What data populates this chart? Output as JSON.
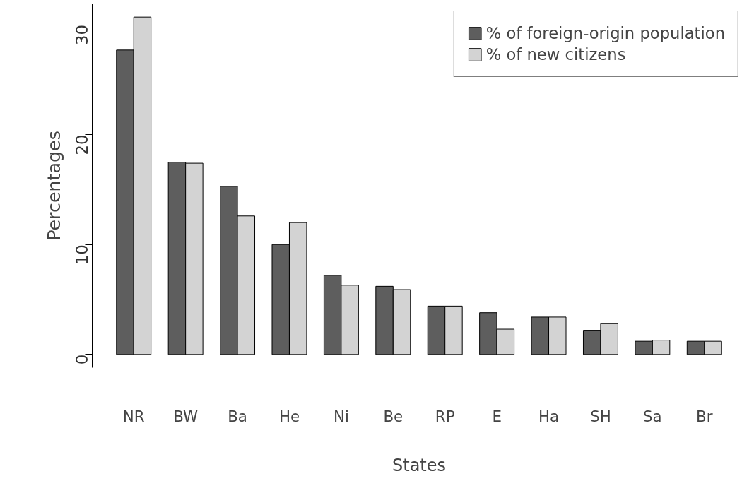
{
  "chart_data": {
    "type": "bar",
    "xlabel": "States",
    "ylabel": "Percentages",
    "categories": [
      "NR",
      "BW",
      "Ba",
      "He",
      "Ni",
      "Be",
      "RP",
      "E",
      "Ha",
      "SH",
      "Sa",
      "Br"
    ],
    "series": [
      {
        "name": "% of foreign-origin population",
        "color": "#5e5e5e",
        "values": [
          27.7,
          17.5,
          15.3,
          10.0,
          7.2,
          6.2,
          4.4,
          3.8,
          3.4,
          2.2,
          1.2,
          1.2
        ]
      },
      {
        "name": "% of new citizens",
        "color": "#d3d3d3",
        "values": [
          30.7,
          17.4,
          12.6,
          12.0,
          6.3,
          5.9,
          4.4,
          2.3,
          3.4,
          2.8,
          1.3,
          1.2
        ]
      }
    ],
    "ylim": [
      -1.2,
      31.9
    ],
    "yticks": [
      0,
      10,
      20,
      30
    ],
    "grid": false,
    "legend": "top right"
  }
}
